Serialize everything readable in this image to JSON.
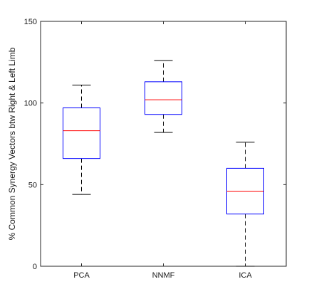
{
  "chart_data": {
    "type": "boxplot",
    "ylabel": "% Common Synergy Vectors btw Right & Left Limb",
    "xlabel": "",
    "title": "",
    "ylim": [
      0,
      150
    ],
    "yticks": [
      0,
      50,
      100,
      150
    ],
    "categories": [
      "PCA",
      "NNMF",
      "ICA"
    ],
    "boxes": [
      {
        "label": "PCA",
        "whisker_low": 44,
        "q1": 66,
        "median": 83,
        "q3": 97,
        "whisker_high": 111
      },
      {
        "label": "NNMF",
        "whisker_low": 82,
        "q1": 93,
        "median": 102,
        "q3": 113,
        "whisker_high": 126
      },
      {
        "label": "ICA",
        "whisker_low": 0,
        "q1": 32,
        "median": 46,
        "q3": 60,
        "whisker_high": 76
      }
    ],
    "grid": false,
    "colors": {
      "box": "#0000ff",
      "median": "#ff0000",
      "whisker": "#000000",
      "axes": "#262626"
    }
  }
}
